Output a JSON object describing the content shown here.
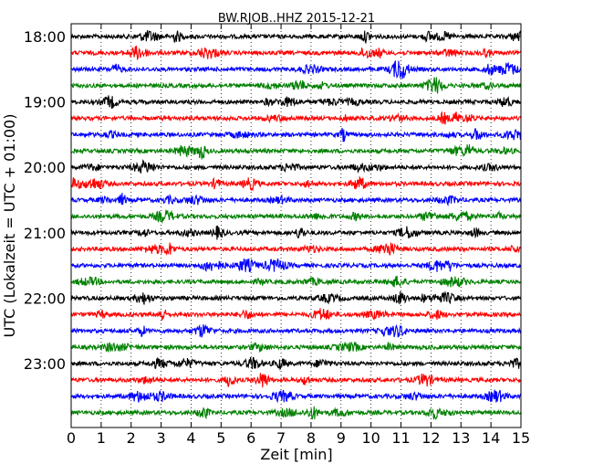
{
  "chart_data": {
    "type": "line",
    "title": "BW.RJOB..HHZ 2015-12-21",
    "xlabel": "Zeit  [min]",
    "ylabel": "UTC (Lokalzeit = UTC + 01:00)",
    "xlim": [
      0,
      15
    ],
    "x_ticks": [
      "0",
      "1",
      "2",
      "3",
      "4",
      "5",
      "6",
      "7",
      "8",
      "9",
      "10",
      "11",
      "12",
      "13",
      "14",
      "15"
    ],
    "y_ticks": [
      {
        "label": "18:00",
        "row": 0
      },
      {
        "label": "19:00",
        "row": 4
      },
      {
        "label": "20:00",
        "row": 8
      },
      {
        "label": "21:00",
        "row": 12
      },
      {
        "label": "22:00",
        "row": 16
      },
      {
        "label": "23:00",
        "row": 20
      }
    ],
    "row_start_times": [
      "18:00",
      "18:15",
      "18:30",
      "18:45",
      "19:00",
      "19:15",
      "19:30",
      "19:45",
      "20:00",
      "20:15",
      "20:30",
      "20:45",
      "21:00",
      "21:15",
      "21:30",
      "21:45",
      "22:00",
      "22:15",
      "22:30",
      "22:45",
      "23:00",
      "23:15",
      "23:30",
      "23:45"
    ],
    "row_colors": [
      "#000000",
      "#ff0000",
      "#0000ff",
      "#008000"
    ],
    "vertical_grid": "dotted, every 1 min",
    "trace_minutes_per_row": 15
  }
}
